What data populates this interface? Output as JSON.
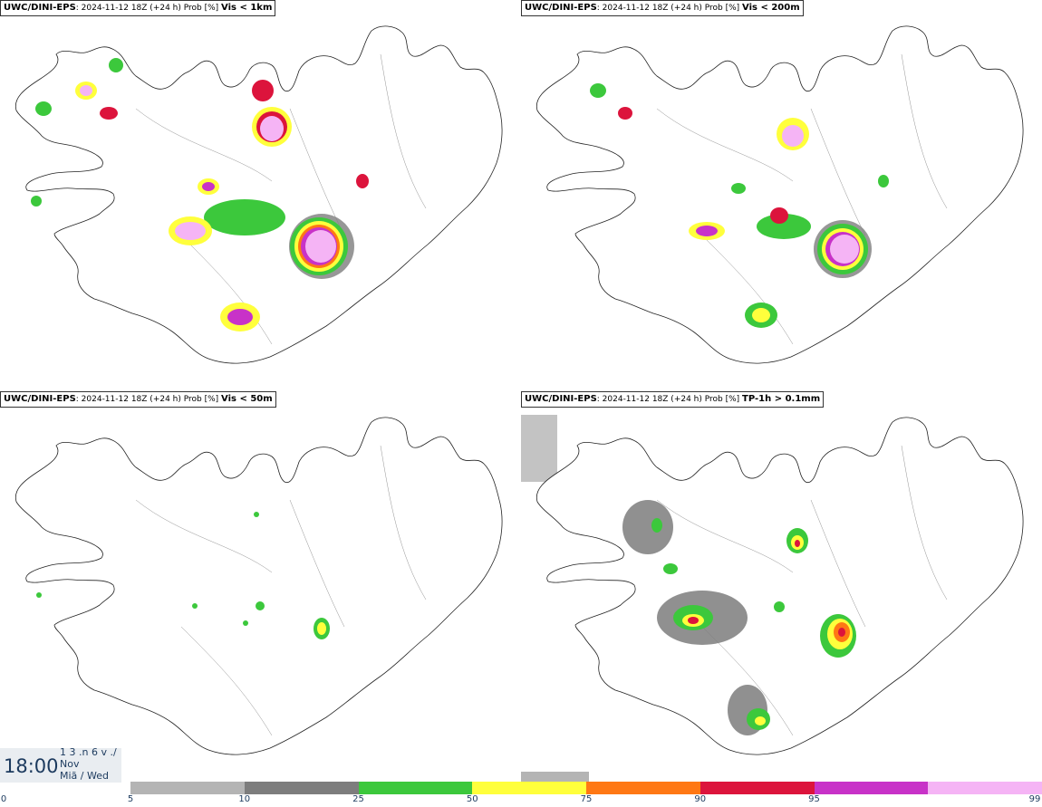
{
  "panels": [
    {
      "model": "UWC/DINI-EPS",
      "run": ": 2024-11-12 18Z (+24 h) Prob [%]",
      "var": "Vis < 1km"
    },
    {
      "model": "UWC/DINI-EPS",
      "run": ": 2024-11-12 18Z (+24 h) Prob [%]",
      "var": "Vis < 200m"
    },
    {
      "model": "UWC/DINI-EPS",
      "run": ": 2024-11-12 18Z (+24 h) Prob [%]",
      "var": "Vis < 50m"
    },
    {
      "model": "UWC/DINI-EPS",
      "run": ": 2024-11-12 18Z (+24 h) Prob [%]",
      "var": "TP-1h > 0.1mm"
    }
  ],
  "valid_time": {
    "time": "18:00",
    "line1": "1 3 .n 6 v ./",
    "line2": "Nov",
    "line3": "Miã / Wed"
  },
  "colorbar": {
    "ticks": [
      "0",
      "5",
      "10",
      "25",
      "50",
      "75",
      "90",
      "95",
      "99"
    ],
    "colors": [
      "#b4b4b4",
      "#7d7d7d",
      "#3cc83c",
      "#ffff3c",
      "#ff7814",
      "#dc143c",
      "#c832c8",
      "#f5b4f5"
    ]
  },
  "legend_colors": {
    "light_grey": "#b4b4b4",
    "dark_grey": "#7d7d7d",
    "green": "#3cc83c",
    "yellow": "#ffff3c",
    "orange": "#ff7814",
    "red": "#dc143c",
    "magenta": "#c832c8",
    "pink": "#f5b4f5"
  }
}
